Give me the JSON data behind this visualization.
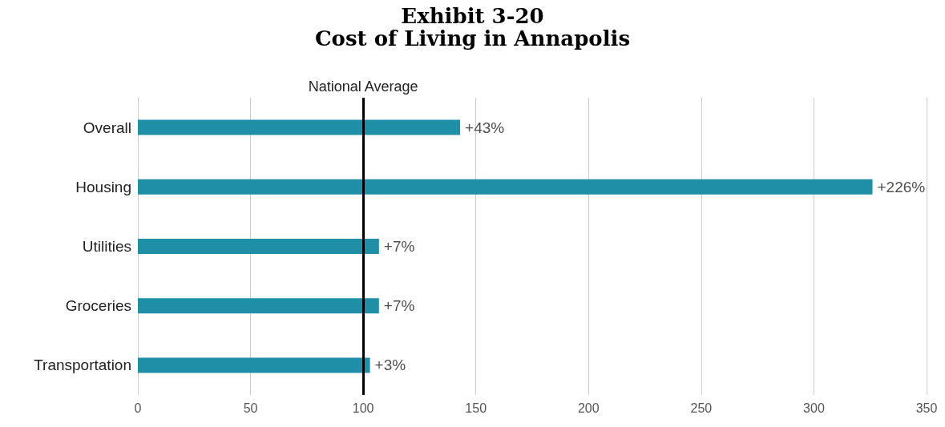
{
  "chart_data": {
    "type": "bar",
    "orientation": "horizontal",
    "title": "Exhibit 3-20",
    "subtitle": "Cost of Living in Annapolis",
    "categories": [
      "Overall",
      "Housing",
      "Utilities",
      "Groceries",
      "Transportation"
    ],
    "values": [
      143,
      326,
      107,
      107,
      103
    ],
    "annotations": [
      {
        "text": "+43%",
        "x": 143,
        "y": "Overall"
      },
      {
        "text": "+226%",
        "x": 326,
        "y": "Housing"
      },
      {
        "text": "+7%",
        "x": 107,
        "y": "Utilities"
      },
      {
        "text": "+7%",
        "x": 107,
        "y": "Groceries"
      },
      {
        "text": "+3%",
        "x": 103,
        "y": "Transportation"
      }
    ],
    "color": "#1f8fa8",
    "xlim": [
      0,
      350
    ],
    "xticks": [
      0,
      50,
      100,
      150,
      200,
      250,
      300,
      350
    ],
    "grid": "x",
    "ref_lines": [
      {
        "axis": "x",
        "value": 100,
        "label": "National Average",
        "color": "#000000"
      }
    ]
  }
}
